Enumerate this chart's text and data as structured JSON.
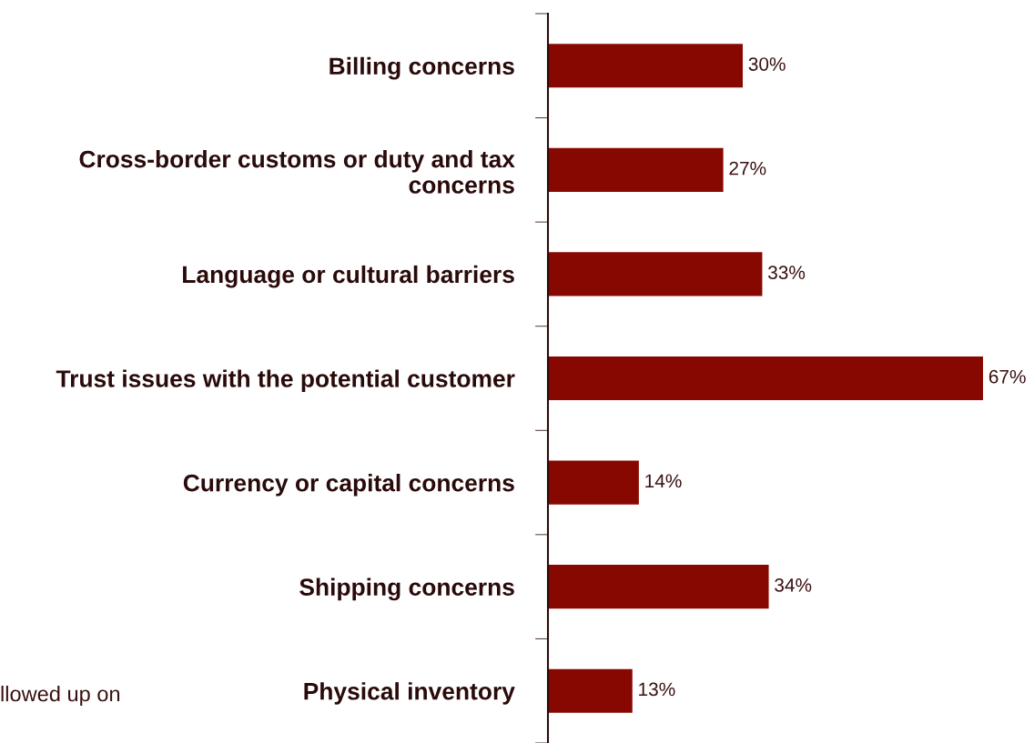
{
  "chart_data": {
    "type": "bar",
    "orientation": "horizontal",
    "categories": [
      "Billing concerns",
      "Cross-border customs or duty and tax concerns",
      "Language or cultural barriers",
      "Trust issues with the potential customer",
      "Currency or capital concerns",
      "Shipping concerns",
      "Physical inventory"
    ],
    "values": [
      30,
      27,
      33,
      67,
      14,
      34,
      13
    ],
    "color": "#870800",
    "data_labels": true,
    "value_labels": [
      "30%",
      "27%",
      "33%",
      "67%",
      "14%",
      "34%",
      "13%"
    ],
    "annotations": [
      "llowed up on"
    ],
    "grid": false,
    "legend": false
  }
}
